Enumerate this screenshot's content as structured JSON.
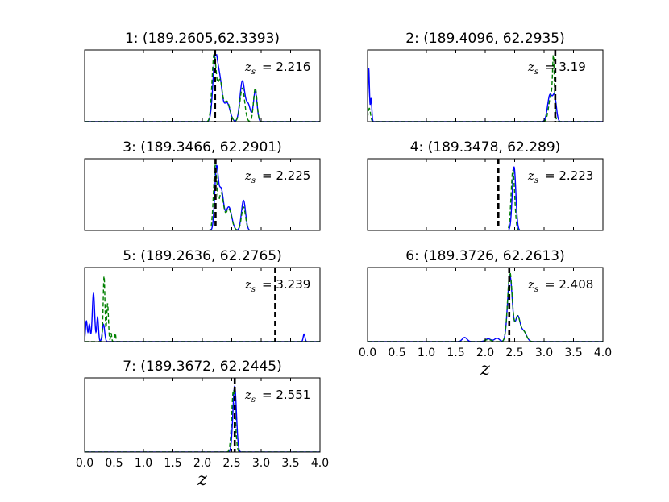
{
  "chart_data": [
    {
      "type": "line",
      "title": "1: (189.2605,62.3393)",
      "annotation": {
        "label": "z",
        "subscript": "s",
        "value": "= 2.216"
      },
      "z_s": 2.216,
      "xlim": [
        0,
        4.0
      ],
      "ylim": [
        0,
        1
      ],
      "series": [
        {
          "style": "solid",
          "color": "#0000ff",
          "peaks": [
            [
              2.22,
              0.95,
              0.04
            ],
            [
              2.3,
              0.55,
              0.04
            ],
            [
              2.42,
              0.28,
              0.05
            ],
            [
              2.68,
              0.6,
              0.04
            ],
            [
              2.78,
              0.25,
              0.04
            ],
            [
              2.9,
              0.45,
              0.03
            ]
          ]
        },
        {
          "style": "dashed",
          "color": "#008000",
          "peaks": [
            [
              2.2,
              1.0,
              0.035
            ],
            [
              2.3,
              0.6,
              0.04
            ],
            [
              2.42,
              0.3,
              0.05
            ],
            [
              2.68,
              0.5,
              0.04
            ],
            [
              2.9,
              0.5,
              0.03
            ]
          ]
        }
      ]
    },
    {
      "type": "line",
      "title": "2: (189.4096, 62.2935)",
      "annotation": {
        "label": "z",
        "subscript": "s",
        "value": "= 3.19"
      },
      "z_s": 3.19,
      "xlim": [
        0,
        4.0
      ],
      "ylim": [
        0,
        1
      ],
      "series": [
        {
          "style": "solid",
          "color": "#0000ff",
          "peaks": [
            [
              0.02,
              0.8,
              0.012
            ],
            [
              0.06,
              0.35,
              0.012
            ],
            [
              3.1,
              0.4,
              0.04
            ],
            [
              3.18,
              0.35,
              0.03
            ]
          ]
        },
        {
          "style": "dashed",
          "color": "#008000",
          "peaks": [
            [
              0.03,
              0.2,
              0.02
            ],
            [
              3.12,
              0.4,
              0.04
            ],
            [
              3.16,
              0.75,
              0.015
            ]
          ]
        }
      ]
    },
    {
      "type": "line",
      "title": "3: (189.3466, 62.2901)",
      "annotation": {
        "label": "z",
        "subscript": "s",
        "value": "= 2.225"
      },
      "z_s": 2.225,
      "xlim": [
        0,
        4.0
      ],
      "ylim": [
        0,
        1
      ],
      "series": [
        {
          "style": "solid",
          "color": "#0000ff",
          "peaks": [
            [
              2.24,
              0.88,
              0.03
            ],
            [
              2.32,
              0.6,
              0.04
            ],
            [
              2.45,
              0.35,
              0.05
            ],
            [
              2.7,
              0.45,
              0.035
            ]
          ]
        },
        {
          "style": "dashed",
          "color": "#008000",
          "peaks": [
            [
              2.22,
              0.95,
              0.03
            ],
            [
              2.32,
              0.55,
              0.04
            ],
            [
              2.45,
              0.32,
              0.05
            ],
            [
              2.7,
              0.35,
              0.035
            ]
          ]
        }
      ]
    },
    {
      "type": "line",
      "title": "4: (189.3478, 62.289)",
      "annotation": {
        "label": "z",
        "subscript": "s",
        "value": "= 2.223"
      },
      "z_s": 2.223,
      "xlim": [
        0,
        4.0
      ],
      "ylim": [
        0,
        1
      ],
      "series": [
        {
          "style": "solid",
          "color": "#0000ff",
          "peaks": [
            [
              2.49,
              0.95,
              0.03
            ]
          ]
        },
        {
          "style": "dashed",
          "color": "#008000",
          "peaks": [
            [
              2.47,
              0.9,
              0.03
            ]
          ]
        }
      ]
    },
    {
      "type": "line",
      "title": "5: (189.2636, 62.2765)",
      "annotation": {
        "label": "z",
        "subscript": "s",
        "value": "= 3.239"
      },
      "z_s": 3.239,
      "xlim": [
        0,
        4.0
      ],
      "ylim": [
        0,
        1
      ],
      "series": [
        {
          "style": "solid",
          "color": "#0000ff",
          "peaks": [
            [
              0.03,
              0.3,
              0.015
            ],
            [
              0.08,
              0.25,
              0.015
            ],
            [
              0.15,
              0.7,
              0.02
            ],
            [
              0.22,
              0.35,
              0.015
            ],
            [
              0.32,
              0.25,
              0.02
            ],
            [
              3.73,
              0.11,
              0.015
            ]
          ]
        },
        {
          "style": "dashed",
          "color": "#008000",
          "peaks": [
            [
              0.33,
              0.95,
              0.015
            ],
            [
              0.39,
              0.55,
              0.015
            ],
            [
              0.45,
              0.12,
              0.01
            ],
            [
              0.52,
              0.12,
              0.01
            ]
          ]
        }
      ]
    },
    {
      "type": "line",
      "title": "6: (189.3726, 62.2613)",
      "annotation": {
        "label": "z",
        "subscript": "s",
        "value": "= 2.408"
      },
      "z_s": 2.408,
      "xlim": [
        0,
        4.0
      ],
      "ylim": [
        0,
        1
      ],
      "xticks": [
        "0.0",
        "0.5",
        "1.0",
        "1.5",
        "2.0",
        "2.5",
        "3.0",
        "3.5",
        "4.0"
      ],
      "xlabel": "z",
      "series": [
        {
          "style": "solid",
          "color": "#0000ff",
          "peaks": [
            [
              1.65,
              0.06,
              0.04
            ],
            [
              2.05,
              0.04,
              0.05
            ],
            [
              2.2,
              0.05,
              0.04
            ],
            [
              2.42,
              0.95,
              0.04
            ],
            [
              2.55,
              0.35,
              0.04
            ],
            [
              2.65,
              0.15,
              0.05
            ]
          ]
        },
        {
          "style": "dashed",
          "color": "#008000",
          "peaks": [
            [
              2.05,
              0.03,
              0.05
            ],
            [
              2.42,
              1.0,
              0.04
            ],
            [
              2.55,
              0.35,
              0.04
            ],
            [
              2.65,
              0.15,
              0.05
            ]
          ]
        }
      ]
    },
    {
      "type": "line",
      "title": "7: (189.3672, 62.2445)",
      "annotation": {
        "label": "z",
        "subscript": "s",
        "value": "= 2.551"
      },
      "z_s": 2.551,
      "xlim": [
        0,
        4.0
      ],
      "ylim": [
        0,
        1
      ],
      "xticks": [
        "0.0",
        "0.5",
        "1.0",
        "1.5",
        "2.0",
        "2.5",
        "3.0",
        "3.5",
        "4.0"
      ],
      "xlabel": "z",
      "series": [
        {
          "style": "solid",
          "color": "#0000ff",
          "peaks": [
            [
              2.55,
              0.95,
              0.03
            ]
          ]
        },
        {
          "style": "dashed",
          "color": "#008000",
          "peaks": [
            [
              2.53,
              0.9,
              0.03
            ]
          ]
        }
      ]
    }
  ]
}
